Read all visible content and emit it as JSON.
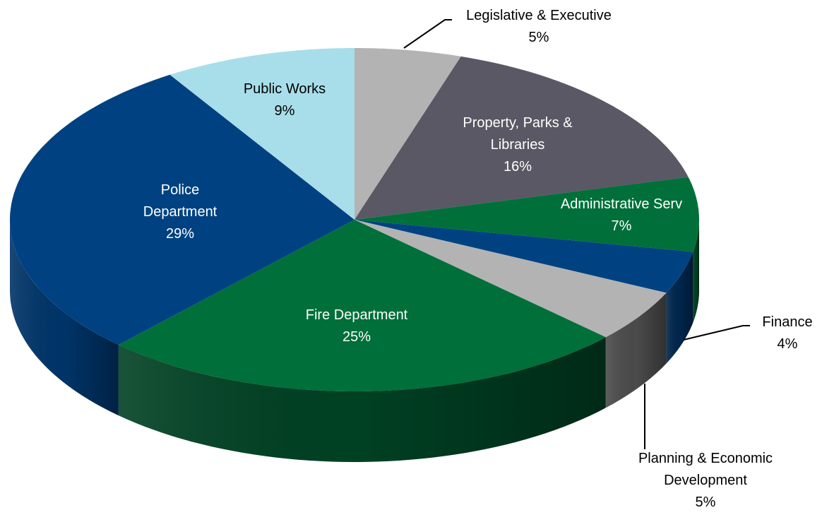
{
  "chart_data": {
    "type": "pie",
    "style": "3d-exploded-tilted",
    "slices": [
      {
        "category": "Legislative & Executive",
        "label_lines": [
          "Legislative & Executive",
          "5%"
        ],
        "value": 5,
        "color": "#b3b3b3",
        "side_color": "#7f7f7f"
      },
      {
        "category": "Property, Parks & Libraries",
        "label_lines": [
          "Property, Parks &",
          "Libraries",
          "16%"
        ],
        "value": 16,
        "color": "#595864",
        "side_color": "#3a3a44"
      },
      {
        "category": "Administrative Serv",
        "label_lines": [
          "Administrative Serv",
          "7%"
        ],
        "value": 7,
        "color": "#006f3a",
        "side_color": "#003f20"
      },
      {
        "category": "Finance",
        "label_lines": [
          "Finance",
          "4%"
        ],
        "value": 4,
        "color": "#004281",
        "side_color": "#00264d"
      },
      {
        "category": "Planning & Economic Development",
        "label_lines": [
          "Planning & Economic",
          "Development",
          "5%"
        ],
        "value": 5,
        "color": "#b3b3b3",
        "side_color": "#4b4b4b"
      },
      {
        "category": "Fire Department",
        "label_lines": [
          "Fire Department",
          "25%"
        ],
        "value": 25,
        "color": "#006f3a",
        "side_color": "#004023"
      },
      {
        "category": "Police Department",
        "label_lines": [
          "Police",
          "Department",
          "29%"
        ],
        "value": 29,
        "color": "#004281",
        "side_color": "#003468"
      },
      {
        "category": "Public Works",
        "label_lines": [
          "Public Works",
          "9%"
        ],
        "value": 9,
        "color": "#a8deea",
        "side_color": "#84b9c4"
      }
    ]
  }
}
